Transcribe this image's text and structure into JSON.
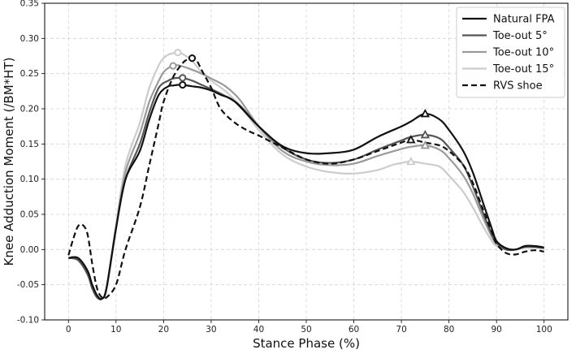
{
  "chart_data": {
    "type": "line",
    "xlabel": "Stance Phase (%)",
    "ylabel": "Knee Adduction Moment (/BM*HT)",
    "xlim": [
      -5,
      105
    ],
    "ylim": [
      -0.1,
      0.35
    ],
    "xticks": [
      0,
      10,
      20,
      30,
      40,
      50,
      60,
      70,
      80,
      90,
      100
    ],
    "xtick_labels": [
      "0",
      "10",
      "20",
      "30",
      "40",
      "50",
      "60",
      "70",
      "80",
      "90",
      "100"
    ],
    "yticks": [
      -0.1,
      -0.05,
      0.0,
      0.05,
      0.1,
      0.15,
      0.2,
      0.25,
      0.3,
      0.35
    ],
    "ytick_labels": [
      "-0.10",
      "-0.05",
      "0.00",
      "0.05",
      "0.10",
      "0.15",
      "0.20",
      "0.25",
      "0.30",
      "0.35"
    ],
    "grid": true,
    "legend_position": "top-right",
    "series": [
      {
        "name": "Natural FPA",
        "color": "#111111",
        "dash": "solid",
        "x": [
          0,
          2,
          4,
          5,
          6,
          7,
          8,
          10,
          12,
          15,
          17,
          19,
          21,
          22,
          23,
          24,
          26,
          28,
          30,
          32,
          35,
          40,
          45,
          50,
          55,
          60,
          65,
          70,
          72,
          75,
          78,
          80,
          83,
          85,
          87,
          89,
          90,
          92,
          94,
          96,
          98,
          100
        ],
        "y": [
          -0.012,
          -0.012,
          -0.03,
          -0.05,
          -0.065,
          -0.07,
          -0.055,
          0.03,
          0.1,
          0.14,
          0.185,
          0.22,
          0.232,
          0.233,
          0.234,
          0.234,
          0.232,
          0.23,
          0.226,
          0.22,
          0.21,
          0.175,
          0.147,
          0.137,
          0.137,
          0.142,
          0.16,
          0.175,
          0.182,
          0.193,
          0.185,
          0.17,
          0.14,
          0.11,
          0.07,
          0.03,
          0.012,
          0.002,
          0.0,
          0.005,
          0.005,
          0.003
        ]
      },
      {
        "name": "Toe-out 5°",
        "color": "#555555",
        "dash": "solid",
        "x": [
          0,
          2,
          4,
          5,
          6,
          7,
          8,
          10,
          12,
          15,
          17,
          19,
          21,
          22,
          23,
          24,
          26,
          28,
          30,
          33,
          36,
          40,
          45,
          50,
          55,
          60,
          65,
          70,
          72,
          75,
          78,
          80,
          83,
          85,
          87,
          89,
          90,
          92,
          94,
          96,
          98,
          100
        ],
        "y": [
          -0.012,
          -0.015,
          -0.035,
          -0.055,
          -0.068,
          -0.07,
          -0.055,
          0.03,
          0.1,
          0.15,
          0.195,
          0.23,
          0.24,
          0.243,
          0.244,
          0.244,
          0.24,
          0.234,
          0.228,
          0.218,
          0.205,
          0.175,
          0.145,
          0.128,
          0.123,
          0.128,
          0.142,
          0.155,
          0.16,
          0.163,
          0.158,
          0.145,
          0.12,
          0.09,
          0.055,
          0.022,
          0.01,
          0.0,
          0.0,
          0.004,
          0.004,
          0.002
        ]
      },
      {
        "name": "Toe-out 10°",
        "color": "#9a9a9a",
        "dash": "solid",
        "x": [
          0,
          2,
          4,
          5,
          6,
          7,
          8,
          10,
          12,
          15,
          17,
          19,
          20,
          21,
          22,
          23,
          25,
          28,
          30,
          33,
          36,
          40,
          45,
          50,
          55,
          60,
          65,
          70,
          72,
          75,
          78,
          80,
          83,
          85,
          87,
          89,
          90,
          92,
          94,
          96,
          98,
          100
        ],
        "y": [
          -0.012,
          -0.015,
          -0.035,
          -0.055,
          -0.068,
          -0.07,
          -0.055,
          0.03,
          0.11,
          0.165,
          0.21,
          0.24,
          0.252,
          0.258,
          0.261,
          0.262,
          0.258,
          0.25,
          0.243,
          0.232,
          0.213,
          0.175,
          0.14,
          0.125,
          0.12,
          0.122,
          0.133,
          0.143,
          0.146,
          0.148,
          0.142,
          0.13,
          0.105,
          0.08,
          0.048,
          0.018,
          0.008,
          0.0,
          0.0,
          0.003,
          0.003,
          0.002
        ]
      },
      {
        "name": "Toe-out 15°",
        "color": "#cccccc",
        "dash": "solid",
        "x": [
          0,
          2,
          4,
          5,
          6,
          7,
          8,
          10,
          12,
          15,
          17,
          19,
          20,
          21,
          22,
          23,
          24,
          26,
          28,
          30,
          33,
          36,
          40,
          45,
          50,
          55,
          60,
          65,
          68,
          70,
          72,
          75,
          78,
          80,
          83,
          85,
          87,
          89,
          90,
          92,
          94,
          96,
          98,
          100
        ],
        "y": [
          -0.012,
          -0.015,
          -0.035,
          -0.055,
          -0.068,
          -0.07,
          -0.055,
          0.035,
          0.12,
          0.18,
          0.23,
          0.262,
          0.272,
          0.277,
          0.279,
          0.28,
          0.278,
          0.268,
          0.252,
          0.24,
          0.225,
          0.205,
          0.17,
          0.135,
          0.118,
          0.11,
          0.108,
          0.113,
          0.12,
          0.123,
          0.125,
          0.122,
          0.118,
          0.105,
          0.082,
          0.06,
          0.035,
          0.012,
          0.005,
          0.0,
          0.0,
          0.003,
          0.003,
          0.002
        ]
      },
      {
        "name": "RVS shoe",
        "color": "#111111",
        "dash": "dashed",
        "x": [
          0,
          1,
          2,
          3,
          4,
          5,
          6,
          7,
          8,
          10,
          12,
          15,
          17,
          19,
          20,
          22,
          24,
          25,
          26,
          27,
          28,
          30,
          32,
          35,
          38,
          40,
          45,
          50,
          55,
          60,
          65,
          70,
          72,
          75,
          78,
          80,
          83,
          85,
          87,
          89,
          90,
          92,
          94,
          96,
          98,
          100
        ],
        "y": [
          -0.008,
          0.015,
          0.033,
          0.035,
          0.022,
          -0.02,
          -0.055,
          -0.068,
          -0.068,
          -0.05,
          0.0,
          0.06,
          0.12,
          0.18,
          0.21,
          0.245,
          0.265,
          0.27,
          0.272,
          0.268,
          0.255,
          0.23,
          0.2,
          0.18,
          0.168,
          0.162,
          0.145,
          0.128,
          0.122,
          0.128,
          0.14,
          0.152,
          0.156,
          0.152,
          0.148,
          0.14,
          0.12,
          0.095,
          0.06,
          0.025,
          0.008,
          -0.005,
          -0.007,
          -0.003,
          -0.001,
          -0.003
        ]
      }
    ],
    "markers": [
      {
        "series": "Natural FPA",
        "shape": "circle",
        "x": 24,
        "y": 0.234
      },
      {
        "series": "Toe-out 5°",
        "shape": "circle",
        "x": 24,
        "y": 0.244
      },
      {
        "series": "Toe-out 10°",
        "shape": "circle",
        "x": 22,
        "y": 0.261
      },
      {
        "series": "Toe-out 15°",
        "shape": "circle",
        "x": 23,
        "y": 0.28
      },
      {
        "series": "RVS shoe",
        "shape": "circle",
        "x": 26,
        "y": 0.272
      },
      {
        "series": "Natural FPA",
        "shape": "triangle",
        "x": 75,
        "y": 0.193
      },
      {
        "series": "Toe-out 5°",
        "shape": "triangle",
        "x": 75,
        "y": 0.163
      },
      {
        "series": "Toe-out 10°",
        "shape": "triangle",
        "x": 75,
        "y": 0.148
      },
      {
        "series": "Toe-out 15°",
        "shape": "triangle",
        "x": 72,
        "y": 0.125
      },
      {
        "series": "RVS shoe",
        "shape": "triangle",
        "x": 72,
        "y": 0.156
      }
    ]
  }
}
